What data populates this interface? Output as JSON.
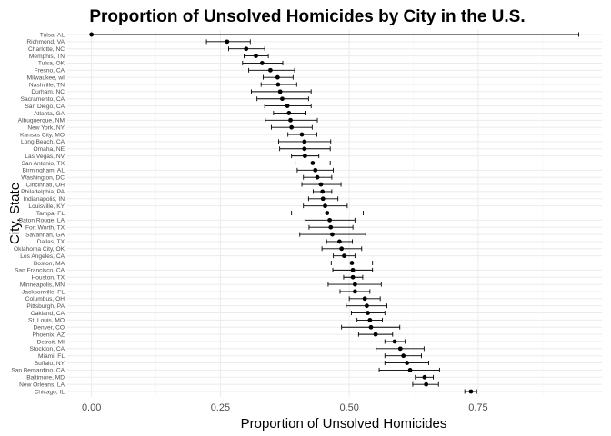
{
  "chart_data": {
    "type": "scatter",
    "title": "Proportion of Unsolved Homicides by City in the U.S.",
    "xlabel": "Proportion of Unsolved Homicides",
    "ylabel": "City, State",
    "xlim": [
      -0.047,
      0.99
    ],
    "x_ticks": [
      0.0,
      0.25,
      0.5,
      0.75
    ],
    "x_tick_labels": [
      "0.00",
      "0.25",
      "0.50",
      "0.75"
    ],
    "grid": true,
    "series": [
      {
        "error_bars": "95% confidence interval",
        "points": [
          {
            "city": "Tulsa, AL",
            "estimate": 0.0,
            "lower": 0.0,
            "upper": 0.945
          },
          {
            "city": "Richmond, VA",
            "estimate": 0.263,
            "lower": 0.223,
            "upper": 0.308
          },
          {
            "city": "Charlotte, NC",
            "estimate": 0.3,
            "lower": 0.266,
            "upper": 0.336
          },
          {
            "city": "Memphis, TN",
            "estimate": 0.319,
            "lower": 0.296,
            "upper": 0.343
          },
          {
            "city": "Tulsa, OK",
            "estimate": 0.331,
            "lower": 0.293,
            "upper": 0.371
          },
          {
            "city": "Fresno, CA",
            "estimate": 0.347,
            "lower": 0.305,
            "upper": 0.394
          },
          {
            "city": "Milwaukee, wI",
            "estimate": 0.361,
            "lower": 0.333,
            "upper": 0.391
          },
          {
            "city": "Nashville, TN",
            "estimate": 0.362,
            "lower": 0.329,
            "upper": 0.398
          },
          {
            "city": "Durham, NC",
            "estimate": 0.366,
            "lower": 0.31,
            "upper": 0.426
          },
          {
            "city": "Sacramento, CA",
            "estimate": 0.37,
            "lower": 0.321,
            "upper": 0.421
          },
          {
            "city": "San Diego, CA",
            "estimate": 0.38,
            "lower": 0.336,
            "upper": 0.426
          },
          {
            "city": "Atlanta, GA",
            "estimate": 0.383,
            "lower": 0.353,
            "upper": 0.416
          },
          {
            "city": "Albuquerque, NM",
            "estimate": 0.386,
            "lower": 0.337,
            "upper": 0.438
          },
          {
            "city": "New York, NY",
            "estimate": 0.388,
            "lower": 0.349,
            "upper": 0.428
          },
          {
            "city": "Kansas City, MO",
            "estimate": 0.408,
            "lower": 0.381,
            "upper": 0.437
          },
          {
            "city": "Long Beach, CA",
            "estimate": 0.413,
            "lower": 0.363,
            "upper": 0.464
          },
          {
            "city": "Omaha, NE",
            "estimate": 0.413,
            "lower": 0.365,
            "upper": 0.463
          },
          {
            "city": "Las Vegas, NV",
            "estimate": 0.414,
            "lower": 0.388,
            "upper": 0.441
          },
          {
            "city": "San Antonio, TX",
            "estimate": 0.429,
            "lower": 0.395,
            "upper": 0.463
          },
          {
            "city": "Birmingham, AL",
            "estimate": 0.434,
            "lower": 0.399,
            "upper": 0.469
          },
          {
            "city": "Washington, DC",
            "estimate": 0.438,
            "lower": 0.411,
            "upper": 0.466
          },
          {
            "city": "Cincinnati, OH",
            "estimate": 0.445,
            "lower": 0.408,
            "upper": 0.484
          },
          {
            "city": "Philadelphia, PA",
            "estimate": 0.448,
            "lower": 0.43,
            "upper": 0.466
          },
          {
            "city": "Indianapolis, IN",
            "estimate": 0.449,
            "lower": 0.421,
            "upper": 0.478
          },
          {
            "city": "Louisville, KY",
            "estimate": 0.453,
            "lower": 0.411,
            "upper": 0.496
          },
          {
            "city": "Tampa, FL",
            "estimate": 0.457,
            "lower": 0.388,
            "upper": 0.527
          },
          {
            "city": "Baton Rouge, LA",
            "estimate": 0.462,
            "lower": 0.414,
            "upper": 0.511
          },
          {
            "city": "Fort Worth, TX",
            "estimate": 0.464,
            "lower": 0.422,
            "upper": 0.507
          },
          {
            "city": "Savannah, GA",
            "estimate": 0.467,
            "lower": 0.404,
            "upper": 0.532
          },
          {
            "city": "Dallas, TX",
            "estimate": 0.481,
            "lower": 0.456,
            "upper": 0.506
          },
          {
            "city": "Oklahoma City, OK",
            "estimate": 0.485,
            "lower": 0.447,
            "upper": 0.524
          },
          {
            "city": "Los Angeles, CA",
            "estimate": 0.49,
            "lower": 0.469,
            "upper": 0.511
          },
          {
            "city": "Boston, MA",
            "estimate": 0.505,
            "lower": 0.465,
            "upper": 0.545
          },
          {
            "city": "San Francisco, CA",
            "estimate": 0.507,
            "lower": 0.468,
            "upper": 0.545
          },
          {
            "city": "Houston, TX",
            "estimate": 0.507,
            "lower": 0.489,
            "upper": 0.526
          },
          {
            "city": "Minneapolis, MN",
            "estimate": 0.511,
            "lower": 0.459,
            "upper": 0.562
          },
          {
            "city": "Jacksonville, FL",
            "estimate": 0.511,
            "lower": 0.482,
            "upper": 0.54
          },
          {
            "city": "Columbus, OH",
            "estimate": 0.53,
            "lower": 0.5,
            "upper": 0.56
          },
          {
            "city": "Pittsburgh, PA",
            "estimate": 0.534,
            "lower": 0.494,
            "upper": 0.573
          },
          {
            "city": "Oakland, CA",
            "estimate": 0.536,
            "lower": 0.504,
            "upper": 0.569
          },
          {
            "city": "St. Louis, MO",
            "estimate": 0.54,
            "lower": 0.515,
            "upper": 0.564
          },
          {
            "city": "Denver, CO",
            "estimate": 0.542,
            "lower": 0.485,
            "upper": 0.598
          },
          {
            "city": "Phoenix, AZ",
            "estimate": 0.551,
            "lower": 0.518,
            "upper": 0.584
          },
          {
            "city": "Detroit, MI",
            "estimate": 0.588,
            "lower": 0.569,
            "upper": 0.608
          },
          {
            "city": "Stockton, CA",
            "estimate": 0.599,
            "lower": 0.552,
            "upper": 0.645
          },
          {
            "city": "Miami, FL",
            "estimate": 0.605,
            "lower": 0.569,
            "upper": 0.64
          },
          {
            "city": "Buffalo, NY",
            "estimate": 0.612,
            "lower": 0.569,
            "upper": 0.654
          },
          {
            "city": "San Bernardino, CA",
            "estimate": 0.618,
            "lower": 0.558,
            "upper": 0.675
          },
          {
            "city": "Baltimore, MD",
            "estimate": 0.646,
            "lower": 0.628,
            "upper": 0.663
          },
          {
            "city": "New Orleans, LA",
            "estimate": 0.649,
            "lower": 0.623,
            "upper": 0.673
          },
          {
            "city": "Chicago, IL",
            "estimate": 0.736,
            "lower": 0.724,
            "upper": 0.747
          }
        ]
      }
    ]
  }
}
